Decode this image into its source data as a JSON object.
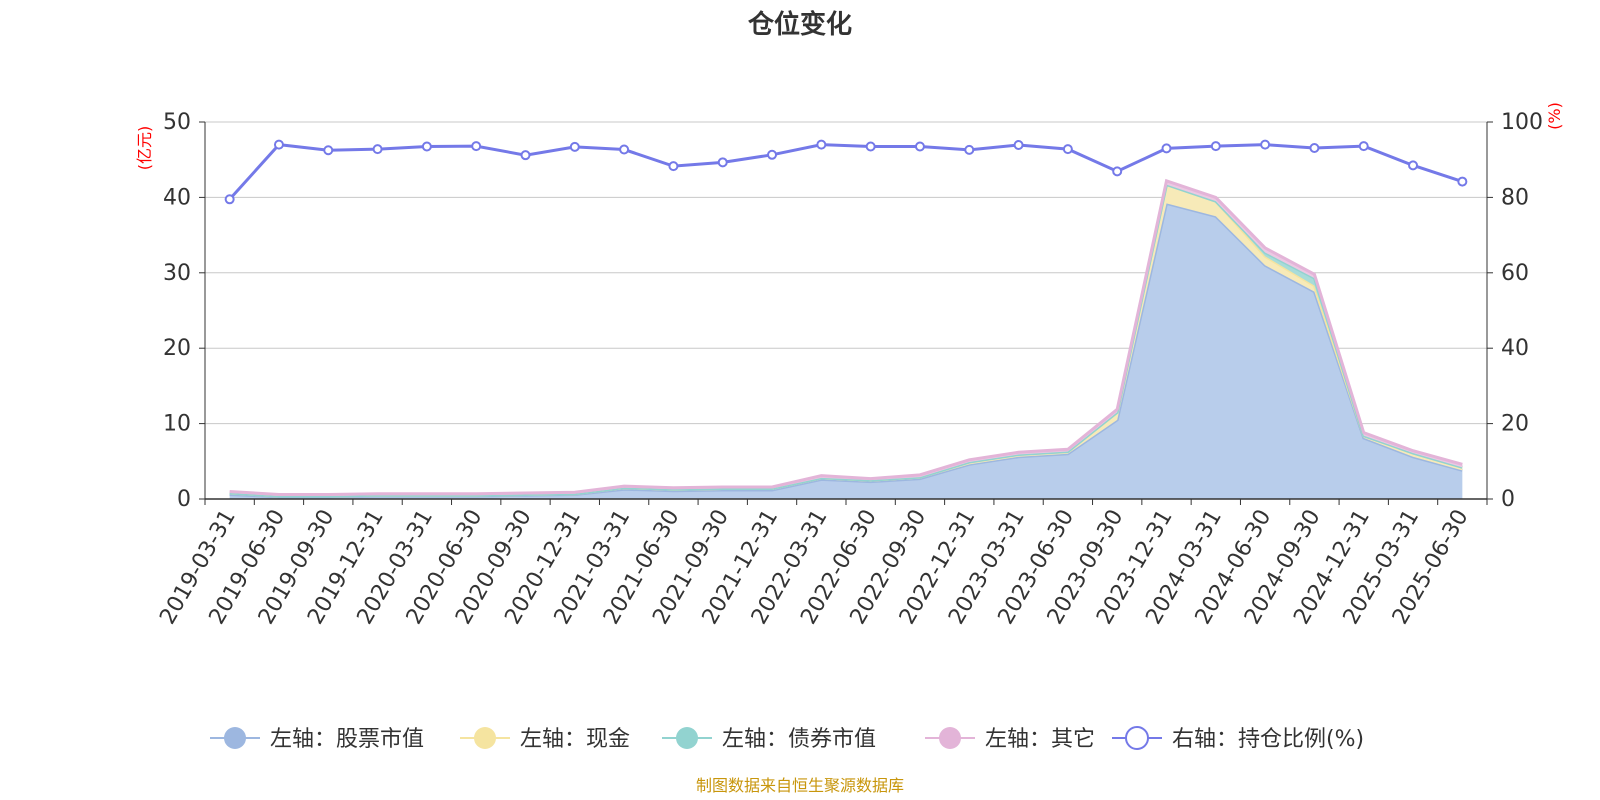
{
  "chart_data": {
    "type": "area",
    "title": "仓位变化",
    "left_axis": {
      "unit_label": "(亿元)",
      "range": [
        0,
        50
      ],
      "ticks": [
        "0",
        "10",
        "20",
        "30",
        "40",
        "50"
      ]
    },
    "right_axis": {
      "unit_label": "(%)",
      "range": [
        0,
        100
      ],
      "ticks": [
        "0",
        "20",
        "40",
        "60",
        "80",
        "100"
      ]
    },
    "categories": [
      "2019-03-31",
      "2019-06-30",
      "2019-09-30",
      "2019-12-31",
      "2020-03-31",
      "2020-06-30",
      "2020-09-30",
      "2020-12-31",
      "2021-03-31",
      "2021-06-30",
      "2021-09-30",
      "2021-12-31",
      "2022-03-31",
      "2022-06-30",
      "2022-09-30",
      "2022-12-31",
      "2023-03-31",
      "2023-06-30",
      "2023-09-30",
      "2023-12-31",
      "2024-03-31",
      "2024-06-30",
      "2024-09-30",
      "2024-12-31",
      "2025-03-31",
      "2025-06-30"
    ],
    "series": [
      {
        "name": "左轴：股票市值",
        "axis": "left",
        "stacked": true,
        "color": "#9db7e0",
        "fill": "#b8cdeb",
        "values": [
          0.6,
          0.3,
          0.3,
          0.4,
          0.4,
          0.4,
          0.5,
          0.6,
          1.3,
          1.1,
          1.2,
          1.2,
          2.6,
          2.3,
          2.7,
          4.6,
          5.6,
          6.0,
          10.5,
          39.2,
          37.5,
          31.0,
          27.5,
          8.1,
          5.6,
          3.8
        ]
      },
      {
        "name": "左轴：现金",
        "axis": "left",
        "stacked": true,
        "color": "#f5e4a0",
        "fill": "#f7eab8",
        "values": [
          0.2,
          0.1,
          0.1,
          0.1,
          0.1,
          0.1,
          0.1,
          0.1,
          0.2,
          0.2,
          0.2,
          0.2,
          0.2,
          0.2,
          0.2,
          0.3,
          0.3,
          0.3,
          1.0,
          2.5,
          2.0,
          1.2,
          0.8,
          0.3,
          0.5,
          0.4
        ]
      },
      {
        "name": "左轴：债券市值",
        "axis": "left",
        "stacked": true,
        "color": "#92d3d0",
        "fill": "#a8dcd9",
        "values": [
          0,
          0,
          0,
          0,
          0,
          0,
          0,
          0,
          0,
          0,
          0,
          0,
          0,
          0,
          0,
          0,
          0,
          0,
          0,
          0,
          0,
          0.5,
          1.0,
          0,
          0,
          0
        ]
      },
      {
        "name": "左轴：其它",
        "axis": "left",
        "stacked": true,
        "color": "#e3b4d8",
        "fill": "#ecc8e3",
        "values": [
          0.2,
          0.2,
          0.2,
          0.2,
          0.2,
          0.2,
          0.2,
          0.2,
          0.2,
          0.2,
          0.2,
          0.2,
          0.3,
          0.2,
          0.3,
          0.3,
          0.3,
          0.3,
          0.4,
          0.5,
          0.5,
          0.6,
          0.5,
          0.4,
          0.3,
          0.4
        ]
      },
      {
        "name": "右轴：持仓比例(%)",
        "axis": "right",
        "type": "line",
        "color": "#7479e8",
        "values": [
          79.5,
          94.0,
          92.5,
          92.8,
          93.5,
          93.6,
          91.2,
          93.4,
          92.7,
          88.3,
          89.3,
          91.3,
          94.0,
          93.5,
          93.5,
          92.6,
          93.9,
          92.8,
          86.9,
          93.0,
          93.6,
          94.0,
          93.1,
          93.6,
          88.5,
          84.2
        ]
      }
    ],
    "legend_position": "bottom",
    "grid": true
  },
  "footer": {
    "source": "制图数据来自恒生聚源数据库"
  }
}
